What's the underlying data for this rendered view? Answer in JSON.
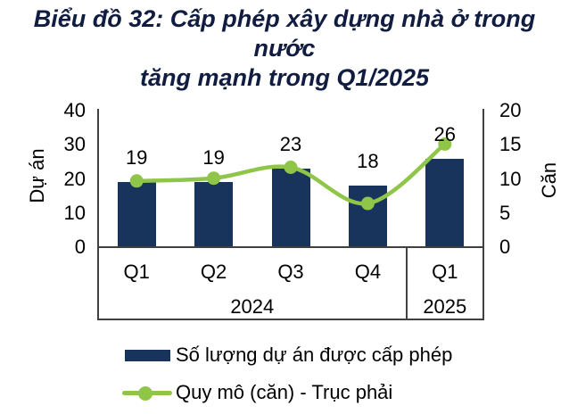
{
  "title": {
    "line1": "Biểu đồ 32: Cấp phép xây dựng nhà ở trong nước",
    "line2": "tăng mạnh trong Q1/2025"
  },
  "colors": {
    "bar": "#18345c",
    "line": "#8fc64a",
    "title_text": "#101c40",
    "axis_line": "#404040",
    "text": "#000000"
  },
  "chart_data": {
    "type": "bar+line",
    "categories": [
      "Q1",
      "Q2",
      "Q3",
      "Q4",
      "Q1"
    ],
    "year_groups": [
      {
        "label": "2024",
        "count": 4
      },
      {
        "label": "2025",
        "count": 1
      }
    ],
    "series": [
      {
        "name": "Số lượng dự án được cấp phép",
        "type": "bar",
        "axis": "left",
        "values": [
          19,
          19,
          23,
          18,
          26
        ],
        "data_labels": [
          "19",
          "19",
          "23",
          "18",
          "26"
        ],
        "color": "#18345c"
      },
      {
        "name": "Quy mô (căn) - Trục phải",
        "type": "line",
        "axis": "right",
        "values": [
          9.7,
          10.1,
          11.7,
          6.4,
          15.1
        ],
        "color": "#8fc64a",
        "marker": "circle",
        "smooth": true
      }
    ],
    "left_axis": {
      "label": "Dự án",
      "ticks": [
        0,
        10,
        20,
        30,
        40
      ],
      "range": [
        0,
        40
      ]
    },
    "right_axis": {
      "label": "Căn",
      "ticks": [
        0,
        5,
        10,
        15,
        20
      ],
      "range": [
        0,
        20
      ]
    },
    "grid": false,
    "legend_position": "bottom"
  },
  "legend": {
    "items": [
      {
        "label": "Số lượng dự án được cấp phép",
        "swatch": "bar"
      },
      {
        "label": "Quy mô (căn) - Trục phải",
        "swatch": "line-marker"
      }
    ]
  }
}
